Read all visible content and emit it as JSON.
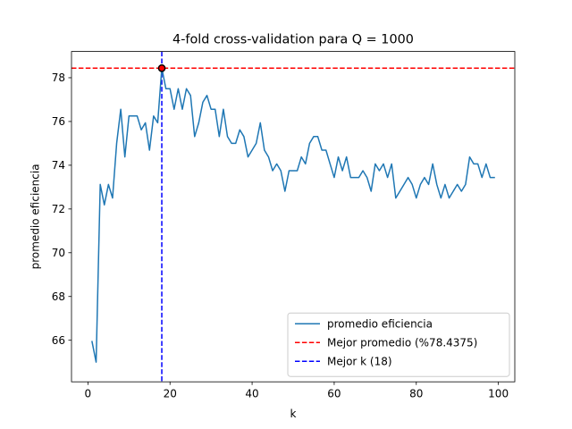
{
  "chart_data": {
    "type": "line",
    "title": "4-fold cross-validation para Q = 1000",
    "xlabel": "k",
    "ylabel": "promedio eficiencia",
    "xlim": [
      -4,
      104
    ],
    "ylim": [
      64.1,
      79.2
    ],
    "xticks": [
      0,
      20,
      40,
      60,
      80,
      100
    ],
    "yticks": [
      66,
      68,
      70,
      72,
      74,
      76,
      78
    ],
    "grid": false,
    "legend_position": "lower-right",
    "x": [
      1,
      2,
      3,
      4,
      5,
      6,
      7,
      8,
      9,
      10,
      11,
      12,
      13,
      14,
      15,
      16,
      17,
      18,
      19,
      20,
      21,
      22,
      23,
      24,
      25,
      26,
      27,
      28,
      29,
      30,
      31,
      32,
      33,
      34,
      35,
      36,
      37,
      38,
      39,
      40,
      41,
      42,
      43,
      44,
      45,
      46,
      47,
      48,
      49,
      50,
      51,
      52,
      53,
      54,
      55,
      56,
      57,
      58,
      59,
      60,
      61,
      62,
      63,
      64,
      65,
      66,
      67,
      68,
      69,
      70,
      71,
      72,
      73,
      74,
      75,
      76,
      77,
      78,
      79,
      80,
      81,
      82,
      83,
      84,
      85,
      86,
      87,
      88,
      89,
      90,
      91,
      92,
      93,
      94,
      95,
      96,
      97,
      98,
      99
    ],
    "series": [
      {
        "name": "promedio eficiencia",
        "color": "#1f77b4",
        "style": "solid",
        "values": [
          65.94,
          65.0,
          73.12,
          72.19,
          73.12,
          72.5,
          75.0,
          76.56,
          74.38,
          76.25,
          76.25,
          76.25,
          75.62,
          75.94,
          74.69,
          76.25,
          75.94,
          78.44,
          77.5,
          77.5,
          76.56,
          77.5,
          76.56,
          77.5,
          77.19,
          75.31,
          75.94,
          76.88,
          77.19,
          76.56,
          76.56,
          75.31,
          76.56,
          75.31,
          75.0,
          75.0,
          75.62,
          75.31,
          74.38,
          74.69,
          75.0,
          75.94,
          74.69,
          74.38,
          73.75,
          74.06,
          73.75,
          72.81,
          73.75,
          73.75,
          73.75,
          74.38,
          74.06,
          75.0,
          75.31,
          75.31,
          74.69,
          74.69,
          74.06,
          73.44,
          74.38,
          73.75,
          74.38,
          73.44,
          73.44,
          73.44,
          73.75,
          73.44,
          72.81,
          74.06,
          73.75,
          74.06,
          73.44,
          74.06,
          72.5,
          72.81,
          73.12,
          73.44,
          73.12,
          72.5,
          73.12,
          73.44,
          73.12,
          74.06,
          73.12,
          72.5,
          73.12,
          72.5,
          72.81,
          73.12,
          72.81,
          73.12,
          74.38,
          74.06,
          74.06,
          73.44,
          74.06,
          73.44,
          73.44
        ]
      }
    ],
    "reference_lines": [
      {
        "orientation": "horizontal",
        "value": 78.4375,
        "color": "#ff0000",
        "style": "dashed",
        "label": "Mejor promedio (%78.4375)"
      },
      {
        "orientation": "vertical",
        "value": 18,
        "color": "#0000ff",
        "style": "dashed",
        "label": "Mejor k (18)"
      }
    ],
    "highlight_point": {
      "x": 18,
      "y": 78.4375,
      "fill": "#ff0000",
      "edge": "#000000"
    }
  }
}
